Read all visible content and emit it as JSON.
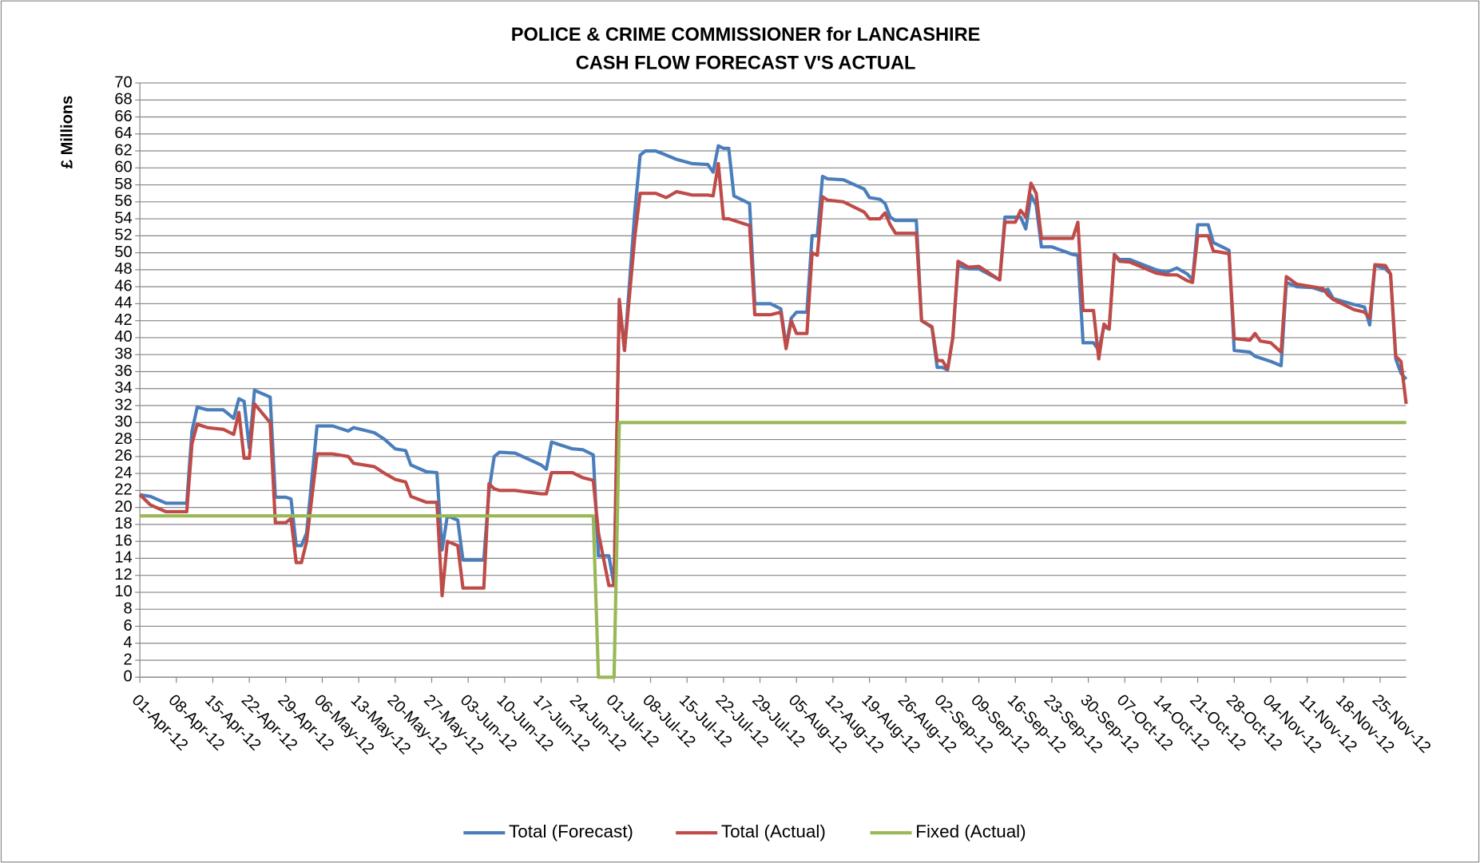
{
  "chart_data": {
    "type": "line",
    "title": [
      "POLICE & CRIME COMMISSIONER for LANCASHIRE",
      "CASH FLOW FORECAST  V'S ACTUAL"
    ],
    "y_label": "£ Millions",
    "xlim": [
      "2012-04-01",
      "2012-11-30"
    ],
    "ylim": [
      0,
      70
    ],
    "yticks": [
      0,
      2,
      4,
      6,
      8,
      10,
      12,
      14,
      16,
      18,
      20,
      22,
      24,
      26,
      28,
      30,
      32,
      34,
      36,
      38,
      40,
      42,
      44,
      46,
      48,
      50,
      52,
      54,
      56,
      58,
      60,
      62,
      64,
      66,
      68,
      70
    ],
    "xticks": [
      {
        "value": "2012-04-01",
        "label": "01-Apr-12"
      },
      {
        "value": "2012-04-08",
        "label": "08-Apr-12"
      },
      {
        "value": "2012-04-15",
        "label": "15-Apr-12"
      },
      {
        "value": "2012-04-22",
        "label": "22-Apr-12"
      },
      {
        "value": "2012-04-29",
        "label": "29-Apr-12"
      },
      {
        "value": "2012-05-06",
        "label": "06-May-12"
      },
      {
        "value": "2012-05-13",
        "label": "13-May-12"
      },
      {
        "value": "2012-05-20",
        "label": "20-May-12"
      },
      {
        "value": "2012-05-27",
        "label": "27-May-12"
      },
      {
        "value": "2012-06-03",
        "label": "03-Jun-12"
      },
      {
        "value": "2012-06-10",
        "label": "10-Jun-12"
      },
      {
        "value": "2012-06-17",
        "label": "17-Jun-12"
      },
      {
        "value": "2012-06-24",
        "label": "24-Jun-12"
      },
      {
        "value": "2012-07-01",
        "label": "01-Jul-12"
      },
      {
        "value": "2012-07-08",
        "label": "08-Jul-12"
      },
      {
        "value": "2012-07-15",
        "label": "15-Jul-12"
      },
      {
        "value": "2012-07-22",
        "label": "22-Jul-12"
      },
      {
        "value": "2012-07-29",
        "label": "29-Jul-12"
      },
      {
        "value": "2012-08-05",
        "label": "05-Aug-12"
      },
      {
        "value": "2012-08-12",
        "label": "12-Aug-12"
      },
      {
        "value": "2012-08-19",
        "label": "19-Aug-12"
      },
      {
        "value": "2012-08-26",
        "label": "26-Aug-12"
      },
      {
        "value": "2012-09-02",
        "label": "02-Sep-12"
      },
      {
        "value": "2012-09-09",
        "label": "09-Sep-12"
      },
      {
        "value": "2012-09-16",
        "label": "16-Sep-12"
      },
      {
        "value": "2012-09-23",
        "label": "23-Sep-12"
      },
      {
        "value": "2012-09-30",
        "label": "30-Sep-12"
      },
      {
        "value": "2012-10-07",
        "label": "07-Oct-12"
      },
      {
        "value": "2012-10-14",
        "label": "14-Oct-12"
      },
      {
        "value": "2012-10-21",
        "label": "21-Oct-12"
      },
      {
        "value": "2012-10-28",
        "label": "28-Oct-12"
      },
      {
        "value": "2012-11-04",
        "label": "04-Nov-12"
      },
      {
        "value": "2012-11-11",
        "label": "11-Nov-12"
      },
      {
        "value": "2012-11-18",
        "label": "18-Nov-12"
      },
      {
        "value": "2012-11-25",
        "label": "25-Nov-12"
      }
    ],
    "grid": true,
    "legend": "bottom",
    "series": [
      {
        "name": "Total (Forecast)",
        "color": "#4a7ebb",
        "x": [
          "2012-04-01",
          "2012-04-03",
          "2012-04-06",
          "2012-04-10",
          "2012-04-11",
          "2012-04-12",
          "2012-04-14",
          "2012-04-17",
          "2012-04-19",
          "2012-04-20",
          "2012-04-21",
          "2012-04-22",
          "2012-04-23",
          "2012-04-26",
          "2012-04-27",
          "2012-04-29",
          "2012-04-30",
          "2012-05-01",
          "2012-05-02",
          "2012-05-03",
          "2012-05-05",
          "2012-05-08",
          "2012-05-11",
          "2012-05-12",
          "2012-05-16",
          "2012-05-18",
          "2012-05-20",
          "2012-05-22",
          "2012-05-23",
          "2012-05-26",
          "2012-05-28",
          "2012-05-29",
          "2012-05-30",
          "2012-06-01",
          "2012-06-02",
          "2012-06-06",
          "2012-06-07",
          "2012-06-08",
          "2012-06-09",
          "2012-06-12",
          "2012-06-17",
          "2012-06-18",
          "2012-06-19",
          "2012-06-23",
          "2012-06-25",
          "2012-06-27",
          "2012-06-28",
          "2012-06-30",
          "2012-07-01",
          "2012-07-02",
          "2012-07-03",
          "2012-07-05",
          "2012-07-06",
          "2012-07-07",
          "2012-07-09",
          "2012-07-11",
          "2012-07-13",
          "2012-07-16",
          "2012-07-19",
          "2012-07-20",
          "2012-07-21",
          "2012-07-22",
          "2012-07-23",
          "2012-07-24",
          "2012-07-27",
          "2012-07-28",
          "2012-07-31",
          "2012-08-02",
          "2012-08-03",
          "2012-08-04",
          "2012-08-05",
          "2012-08-07",
          "2012-08-08",
          "2012-08-09",
          "2012-08-10",
          "2012-08-11",
          "2012-08-14",
          "2012-08-18",
          "2012-08-19",
          "2012-08-21",
          "2012-08-22",
          "2012-08-23",
          "2012-08-24",
          "2012-08-28",
          "2012-08-29",
          "2012-08-31",
          "2012-09-01",
          "2012-09-02",
          "2012-09-03",
          "2012-09-04",
          "2012-09-05",
          "2012-09-07",
          "2012-09-09",
          "2012-09-13",
          "2012-09-14",
          "2012-09-16",
          "2012-09-17",
          "2012-09-18",
          "2012-09-19",
          "2012-09-20",
          "2012-09-21",
          "2012-09-23",
          "2012-09-27",
          "2012-09-28",
          "2012-09-29",
          "2012-10-01",
          "2012-10-02",
          "2012-10-03",
          "2012-10-04",
          "2012-10-05",
          "2012-10-06",
          "2012-10-08",
          "2012-10-13",
          "2012-10-15",
          "2012-10-17",
          "2012-10-19",
          "2012-10-20",
          "2012-10-21",
          "2012-10-23",
          "2012-10-24",
          "2012-10-27",
          "2012-10-28",
          "2012-10-31",
          "2012-11-01",
          "2012-11-02",
          "2012-11-04",
          "2012-11-06",
          "2012-11-07",
          "2012-11-09",
          "2012-11-12",
          "2012-11-14",
          "2012-11-15",
          "2012-11-16",
          "2012-11-20",
          "2012-11-22",
          "2012-11-23",
          "2012-11-24",
          "2012-11-26",
          "2012-11-27",
          "2012-11-28",
          "2012-11-29",
          "2012-11-30"
        ],
        "values": [
          21.5,
          21.3,
          20.5,
          20.5,
          29,
          31.8,
          31.5,
          31.5,
          30.5,
          32.8,
          32.5,
          27,
          33.8,
          33,
          21.2,
          21.2,
          21,
          15.5,
          15.5,
          17,
          29.6,
          29.6,
          29,
          29.4,
          28.8,
          28,
          26.9,
          26.7,
          25,
          24.2,
          24.1,
          15,
          19,
          18.5,
          13.8,
          13.8,
          22,
          26,
          26.5,
          26.4,
          25,
          24.5,
          27.7,
          26.9,
          26.8,
          26.2,
          14.3,
          14.3,
          10.8,
          44.3,
          38.5,
          55,
          61.5,
          62,
          62,
          61.5,
          61,
          60.5,
          60.4,
          59.5,
          62.6,
          62.3,
          62.3,
          56.7,
          55.8,
          44,
          44,
          43.4,
          39,
          42.3,
          43,
          43,
          52,
          52,
          59,
          58.7,
          58.6,
          57.5,
          56.5,
          56.3,
          55.8,
          54.2,
          53.8,
          53.8,
          42,
          41.2,
          36.5,
          36.5,
          36.2,
          40,
          48.5,
          48.1,
          48.1,
          46.8,
          54.2,
          54.2,
          54.2,
          52.8,
          56.8,
          55.6,
          50.7,
          50.7,
          49.8,
          49.7,
          39.4,
          39.4,
          38.5,
          41.3,
          41,
          49.8,
          49.2,
          49.2,
          48,
          47.7,
          48.2,
          47.5,
          46.8,
          53.3,
          53.3,
          51.2,
          50.3,
          38.5,
          38.3,
          37.8,
          37.6,
          37.2,
          36.7,
          46.5,
          46,
          45.9,
          45.5,
          45.7,
          44.6,
          43.9,
          43.6,
          41.5,
          48.5,
          48.1,
          47.5,
          37.5,
          35.8,
          35.1
        ]
      },
      {
        "name": "Total (Actual)",
        "color": "#be4b48",
        "x": [
          "2012-04-01",
          "2012-04-03",
          "2012-04-06",
          "2012-04-10",
          "2012-04-11",
          "2012-04-12",
          "2012-04-14",
          "2012-04-17",
          "2012-04-19",
          "2012-04-20",
          "2012-04-21",
          "2012-04-22",
          "2012-04-23",
          "2012-04-26",
          "2012-04-27",
          "2012-04-29",
          "2012-04-30",
          "2012-05-01",
          "2012-05-02",
          "2012-05-03",
          "2012-05-05",
          "2012-05-08",
          "2012-05-11",
          "2012-05-12",
          "2012-05-16",
          "2012-05-18",
          "2012-05-20",
          "2012-05-22",
          "2012-05-23",
          "2012-05-26",
          "2012-05-28",
          "2012-05-29",
          "2012-05-30",
          "2012-06-01",
          "2012-06-02",
          "2012-06-06",
          "2012-06-07",
          "2012-06-08",
          "2012-06-09",
          "2012-06-12",
          "2012-06-17",
          "2012-06-18",
          "2012-06-19",
          "2012-06-23",
          "2012-06-25",
          "2012-06-27",
          "2012-06-28",
          "2012-06-30",
          "2012-07-01",
          "2012-07-02",
          "2012-07-03",
          "2012-07-05",
          "2012-07-06",
          "2012-07-07",
          "2012-07-09",
          "2012-07-11",
          "2012-07-13",
          "2012-07-16",
          "2012-07-19",
          "2012-07-20",
          "2012-07-21",
          "2012-07-22",
          "2012-07-23",
          "2012-07-24",
          "2012-07-27",
          "2012-07-28",
          "2012-07-31",
          "2012-08-02",
          "2012-08-03",
          "2012-08-04",
          "2012-08-05",
          "2012-08-07",
          "2012-08-08",
          "2012-08-09",
          "2012-08-10",
          "2012-08-11",
          "2012-08-14",
          "2012-08-18",
          "2012-08-19",
          "2012-08-21",
          "2012-08-22",
          "2012-08-23",
          "2012-08-24",
          "2012-08-28",
          "2012-08-29",
          "2012-08-31",
          "2012-09-01",
          "2012-09-02",
          "2012-09-03",
          "2012-09-04",
          "2012-09-05",
          "2012-09-07",
          "2012-09-09",
          "2012-09-13",
          "2012-09-14",
          "2012-09-16",
          "2012-09-17",
          "2012-09-18",
          "2012-09-19",
          "2012-09-20",
          "2012-09-21",
          "2012-09-23",
          "2012-09-27",
          "2012-09-28",
          "2012-09-29",
          "2012-10-01",
          "2012-10-02",
          "2012-10-03",
          "2012-10-04",
          "2012-10-05",
          "2012-10-06",
          "2012-10-08",
          "2012-10-13",
          "2012-10-15",
          "2012-10-17",
          "2012-10-19",
          "2012-10-20",
          "2012-10-21",
          "2012-10-23",
          "2012-10-24",
          "2012-10-27",
          "2012-10-28",
          "2012-10-31",
          "2012-11-01",
          "2012-11-02",
          "2012-11-04",
          "2012-11-06",
          "2012-11-07",
          "2012-11-09",
          "2012-11-12",
          "2012-11-14",
          "2012-11-15",
          "2012-11-16",
          "2012-11-20",
          "2012-11-22",
          "2012-11-23",
          "2012-11-24",
          "2012-11-26",
          "2012-11-27",
          "2012-11-28",
          "2012-11-29",
          "2012-11-30"
        ],
        "values": [
          21.5,
          20.3,
          19.5,
          19.5,
          27.5,
          29.8,
          29.4,
          29.2,
          28.6,
          31.2,
          25.8,
          25.8,
          32.2,
          30,
          18.2,
          18.2,
          18.7,
          13.5,
          13.5,
          16,
          26.3,
          26.3,
          26,
          25.2,
          24.8,
          24,
          23.3,
          23,
          21.3,
          20.6,
          20.6,
          9.6,
          16,
          15.5,
          10.5,
          10.5,
          22.8,
          22.2,
          22,
          22,
          21.6,
          21.6,
          24.1,
          24.1,
          23.5,
          23.2,
          17,
          10.8,
          10.8,
          44.5,
          38.5,
          52,
          57,
          57,
          57,
          56.5,
          57.2,
          56.8,
          56.8,
          56.7,
          60.5,
          54,
          54,
          53.8,
          53.2,
          42.7,
          42.7,
          43,
          38.7,
          42,
          40.5,
          40.5,
          50,
          49.7,
          56.6,
          56.2,
          56,
          54.8,
          54,
          54,
          54.7,
          53.3,
          52.3,
          52.3,
          42,
          41.3,
          37.3,
          37.3,
          36.3,
          40,
          49,
          48.3,
          48.4,
          46.8,
          53.6,
          53.6,
          55,
          54.2,
          58.2,
          57,
          51.7,
          51.7,
          51.7,
          53.6,
          43.2,
          43.2,
          37.5,
          41.6,
          41,
          49.8,
          49,
          48.9,
          47.6,
          47.4,
          47.4,
          46.7,
          46.5,
          52,
          52,
          50.2,
          49.9,
          39.9,
          39.7,
          40.5,
          39.6,
          39.4,
          38.3,
          47.2,
          46.3,
          46,
          45.8,
          45,
          44.5,
          43.3,
          43,
          42.3,
          48.6,
          48.5,
          47.5,
          37.8,
          37.2,
          32.2
        ]
      },
      {
        "name": "Fixed (Actual)",
        "color": "#98b954",
        "x": [
          "2012-04-01",
          "2012-06-27",
          "2012-06-28",
          "2012-07-01",
          "2012-07-02",
          "2012-11-30"
        ],
        "values": [
          19,
          19,
          0,
          0,
          30,
          30
        ]
      }
    ]
  }
}
